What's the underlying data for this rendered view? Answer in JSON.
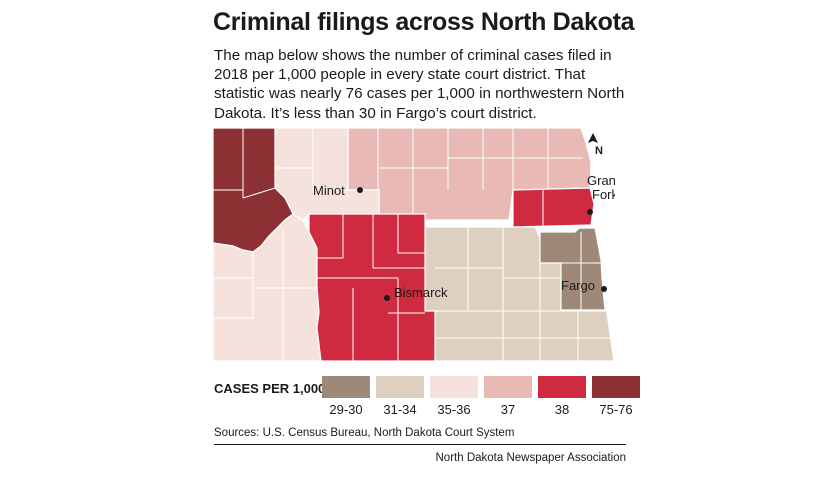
{
  "title": "Criminal filings across North Dakota",
  "intro": "The map below shows the number of criminal cases filed in 2018 per 1,000 people in every state court district. That statistic was nearly 76 cases per 1,000 in northwestern North Dakota. It’s less than 30 in Fargo’s court district.",
  "map": {
    "north_label": "N",
    "cities": [
      {
        "name": "Minot",
        "value_label": "Minot"
      },
      {
        "name": "Grand Forks",
        "line1": "Grand",
        "line2": "Forks"
      },
      {
        "name": "Bismarck",
        "value_label": "Bismarck"
      },
      {
        "name": "Fargo",
        "value_label": "Fargo"
      }
    ],
    "districts": [
      {
        "name": "Northwest",
        "range": "75-76"
      },
      {
        "name": "North Central",
        "range": "35-36"
      },
      {
        "name": "Northeast",
        "range": "37"
      },
      {
        "name": "Northeast Central",
        "range": "38"
      },
      {
        "name": "South Central",
        "range": "38"
      },
      {
        "name": "Southwest",
        "range": "35-36"
      },
      {
        "name": "Southeast",
        "range": "31-34"
      },
      {
        "name": "East Central",
        "range": "29-30"
      }
    ]
  },
  "legend": {
    "title": "CASES PER 1,000",
    "items": [
      {
        "label": "29-30",
        "color": "#9e8877"
      },
      {
        "label": "31-34",
        "color": "#ddd0bf"
      },
      {
        "label": "35-36",
        "color": "#f5e2dc"
      },
      {
        "label": "37",
        "color": "#e8b9b5"
      },
      {
        "label": "38",
        "color": "#cf2a3f"
      },
      {
        "label": "75-76",
        "color": "#8b3134"
      }
    ]
  },
  "sources": "Sources: U.S. Census Bureau, North Dakota Court System",
  "credit": "North Dakota Newspaper Association"
}
